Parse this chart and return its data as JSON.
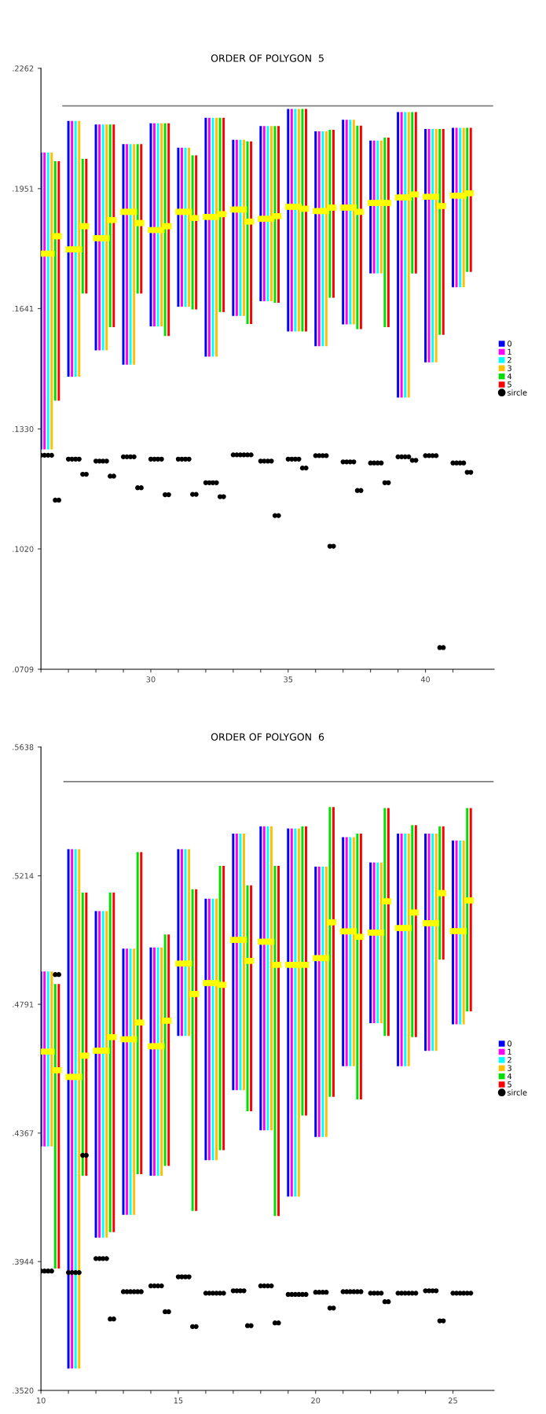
{
  "chart_data": [
    {
      "type": "bar",
      "title": "ORDER OF POLYGON  5",
      "legend": "right",
      "xlim": [
        26,
        42.5
      ],
      "ylim": [
        0.0709,
        0.2262
      ],
      "xticks": [
        {
          "value": 26,
          "label": null
        },
        {
          "value": 27,
          "label": null
        },
        {
          "value": 28,
          "label": null
        },
        {
          "value": 29,
          "label": null
        },
        30,
        {
          "value": 31,
          "label": null
        },
        {
          "value": 32,
          "label": null
        },
        {
          "value": 33,
          "label": null
        },
        {
          "value": 34,
          "label": null
        },
        35,
        {
          "value": 36,
          "label": null
        },
        {
          "value": 37,
          "label": null
        },
        {
          "value": 38,
          "label": null
        },
        {
          "value": 39,
          "label": null
        },
        40,
        {
          "value": 41,
          "label": null
        }
      ],
      "yticks": [
        {
          "value": 0.0709,
          "label": ".0709"
        },
        {
          "value": 0.102,
          "label": ".1020"
        },
        {
          "value": 0.133,
          "label": ".1330"
        },
        {
          "value": 0.1641,
          "label": ".1641"
        },
        {
          "value": 0.1951,
          "label": ".1951"
        },
        {
          "value": 0.2262,
          "label": ".2262"
        }
      ],
      "series": [
        {
          "name": "0",
          "color": "#0000ff",
          "x": [
            26,
            27,
            28,
            29,
            30,
            31,
            32,
            33,
            34,
            35,
            36,
            37,
            38,
            39,
            40,
            41
          ],
          "base": [
            0.1277,
            0.1465,
            0.1533,
            0.1496,
            0.1595,
            0.1646,
            0.1517,
            0.1622,
            0.166,
            0.1582,
            0.1544,
            0.16,
            0.1732,
            0.1411,
            0.1502,
            0.1696
          ],
          "values": [
            0.0767,
            0.0661,
            0.0584,
            0.057,
            0.0525,
            0.0411,
            0.0617,
            0.0455,
            0.0453,
            0.0575,
            0.0555,
            0.0529,
            0.0343,
            0.0738,
            0.0603,
            0.0412
          ]
        },
        {
          "name": "1",
          "color": "#ff00ff",
          "x": [
            26.13,
            27.13,
            28.13,
            29.13,
            30.13,
            31.13,
            32.13,
            33.13,
            34.13,
            35.13,
            36.13,
            37.13,
            38.13,
            39.13,
            40.13,
            41.13
          ],
          "base": [
            0.1277,
            0.1465,
            0.1533,
            0.1496,
            0.1595,
            0.1646,
            0.1517,
            0.1622,
            0.166,
            0.1582,
            0.1544,
            0.16,
            0.1732,
            0.1411,
            0.1502,
            0.1696
          ],
          "values": [
            0.0767,
            0.0661,
            0.0584,
            0.057,
            0.0525,
            0.0411,
            0.0617,
            0.0455,
            0.0453,
            0.0575,
            0.0555,
            0.0529,
            0.0343,
            0.0738,
            0.0603,
            0.0412
          ]
        },
        {
          "name": "2",
          "color": "#00ffff",
          "x": [
            26.26,
            27.26,
            28.26,
            29.26,
            30.26,
            31.26,
            32.26,
            33.26,
            34.26,
            35.26,
            36.26,
            37.26,
            38.26,
            39.26,
            40.26,
            41.26
          ],
          "base": [
            0.1277,
            0.1465,
            0.1533,
            0.1496,
            0.1595,
            0.1646,
            0.1517,
            0.1622,
            0.166,
            0.1582,
            0.1544,
            0.16,
            0.1732,
            0.1411,
            0.1502,
            0.1696
          ],
          "values": [
            0.0767,
            0.0661,
            0.0584,
            0.057,
            0.0525,
            0.0411,
            0.0617,
            0.0455,
            0.0453,
            0.0575,
            0.0555,
            0.0529,
            0.0343,
            0.0738,
            0.0603,
            0.0412
          ]
        },
        {
          "name": "3",
          "color": "#ffc000",
          "x": [
            26.39,
            27.39,
            28.39,
            29.39,
            30.39,
            31.39,
            32.39,
            33.39,
            34.39,
            35.39,
            36.39,
            37.39,
            38.39,
            39.39,
            40.39,
            41.39
          ],
          "base": [
            0.1277,
            0.1465,
            0.1533,
            0.1496,
            0.1595,
            0.1646,
            0.1517,
            0.1622,
            0.166,
            0.1582,
            0.1544,
            0.16,
            0.1732,
            0.1411,
            0.1502,
            0.1696
          ],
          "values": [
            0.0767,
            0.0661,
            0.0584,
            0.057,
            0.0525,
            0.0411,
            0.0617,
            0.0455,
            0.0453,
            0.0575,
            0.0555,
            0.0529,
            0.0343,
            0.0738,
            0.0603,
            0.0412
          ]
        },
        {
          "name": "4",
          "color": "#00e000",
          "x": [
            26.52,
            27.52,
            28.52,
            29.52,
            30.52,
            31.52,
            32.52,
            33.52,
            34.52,
            35.52,
            36.52,
            37.52,
            38.52,
            39.52,
            40.52,
            41.52
          ],
          "base": [
            0.1403,
            0.168,
            0.1593,
            0.168,
            0.157,
            0.1639,
            0.1632,
            0.1601,
            0.1656,
            0.1582,
            0.1669,
            0.1588,
            0.1593,
            0.1732,
            0.1573,
            0.1736
          ],
          "values": [
            0.0619,
            0.0348,
            0.0524,
            0.0386,
            0.055,
            0.0398,
            0.0502,
            0.0472,
            0.0457,
            0.0575,
            0.0434,
            0.0526,
            0.049,
            0.0417,
            0.0532,
            0.0372
          ]
        },
        {
          "name": "5",
          "color": "#ff0000",
          "x": [
            26.65,
            27.65,
            28.65,
            29.65,
            30.65,
            31.65,
            32.65,
            33.65,
            34.65,
            35.65,
            36.65,
            37.65,
            38.65,
            39.65,
            40.65,
            41.65
          ],
          "base": [
            0.1403,
            0.168,
            0.1593,
            0.168,
            0.157,
            0.1639,
            0.1632,
            0.1601,
            0.1656,
            0.1582,
            0.1669,
            0.1588,
            0.1593,
            0.1732,
            0.1573,
            0.1736
          ],
          "values": [
            0.0619,
            0.0348,
            0.0524,
            0.0386,
            0.055,
            0.0398,
            0.0502,
            0.0472,
            0.0457,
            0.0575,
            0.0434,
            0.0526,
            0.049,
            0.0417,
            0.0532,
            0.0372
          ]
        },
        {
          "type": "scatter",
          "marker": "square",
          "color": "#ffff00",
          "x": [
            26,
            26.13,
            26.26,
            26.39,
            26.52,
            26.65,
            27,
            27.13,
            27.26,
            27.39,
            27.52,
            27.65,
            28,
            28.13,
            28.26,
            28.39,
            28.52,
            28.65,
            29,
            29.13,
            29.26,
            29.39,
            29.52,
            29.65,
            30,
            30.13,
            30.26,
            30.39,
            30.52,
            30.65,
            31,
            31.13,
            31.26,
            31.39,
            31.52,
            31.65,
            32,
            32.13,
            32.26,
            32.39,
            32.52,
            32.65,
            33,
            33.13,
            33.26,
            33.39,
            33.52,
            33.65,
            34,
            34.13,
            34.26,
            34.39,
            34.52,
            34.65,
            35,
            35.13,
            35.26,
            35.39,
            35.52,
            35.65,
            36,
            36.13,
            36.26,
            36.39,
            36.52,
            36.65,
            37,
            37.13,
            37.26,
            37.39,
            37.52,
            37.65,
            38,
            38.13,
            38.26,
            38.39,
            38.52,
            38.65,
            39,
            39.13,
            39.26,
            39.39,
            39.52,
            39.65,
            40,
            40.13,
            40.26,
            40.39,
            40.52,
            40.65,
            41,
            41.13,
            41.26,
            41.39,
            41.52,
            41.65
          ],
          "values": [
            0.1783,
            0.1783,
            0.1783,
            0.1783,
            0.1828,
            0.1828,
            0.1794,
            0.1794,
            0.1794,
            0.1794,
            0.1854,
            0.1854,
            0.1823,
            0.1823,
            0.1823,
            0.1823,
            0.187,
            0.187,
            0.1891,
            0.1891,
            0.1891,
            0.1891,
            0.1862,
            0.1862,
            0.1844,
            0.1844,
            0.1844,
            0.1844,
            0.1854,
            0.1854,
            0.1891,
            0.1891,
            0.1891,
            0.1891,
            0.1875,
            0.1875,
            0.1878,
            0.1878,
            0.1878,
            0.1878,
            0.1885,
            0.1885,
            0.1897,
            0.1897,
            0.1897,
            0.1897,
            0.1866,
            0.1866,
            0.1873,
            0.1873,
            0.1873,
            0.1873,
            0.188,
            0.188,
            0.1904,
            0.1904,
            0.1904,
            0.1904,
            0.1899,
            0.1899,
            0.1893,
            0.1893,
            0.1893,
            0.1893,
            0.1902,
            0.1902,
            0.1902,
            0.1902,
            0.1902,
            0.1902,
            0.1891,
            0.1891,
            0.1914,
            0.1914,
            0.1914,
            0.1914,
            0.1914,
            0.1914,
            0.1928,
            0.1928,
            0.1928,
            0.1928,
            0.1936,
            0.1936,
            0.193,
            0.193,
            0.193,
            0.193,
            0.1906,
            0.1906,
            0.1933,
            0.1933,
            0.1933,
            0.1933,
            0.1939,
            0.1939
          ]
        },
        {
          "type": "scatter",
          "name": "sircle",
          "marker": "circle",
          "color": "#000000",
          "x": [
            26,
            26.13,
            26.26,
            26.39,
            26.52,
            26.65,
            27,
            27.13,
            27.26,
            27.39,
            27.52,
            27.65,
            28,
            28.13,
            28.26,
            28.39,
            28.52,
            28.65,
            29,
            29.13,
            29.26,
            29.39,
            29.52,
            29.65,
            30,
            30.13,
            30.26,
            30.39,
            30.52,
            30.65,
            31,
            31.13,
            31.26,
            31.39,
            31.52,
            31.65,
            32,
            32.13,
            32.26,
            32.39,
            32.52,
            32.65,
            33,
            33.13,
            33.26,
            33.39,
            33.52,
            33.65,
            34,
            34.13,
            34.26,
            34.39,
            34.52,
            34.65,
            35,
            35.13,
            35.26,
            35.39,
            35.52,
            35.65,
            36,
            36.13,
            36.26,
            36.39,
            36.52,
            36.65,
            37,
            37.13,
            37.26,
            37.39,
            37.52,
            37.65,
            38,
            38.13,
            38.26,
            38.39,
            38.52,
            38.65,
            39,
            39.13,
            39.26,
            39.39,
            39.52,
            39.65,
            40,
            40.13,
            40.26,
            40.39,
            40.52,
            40.65,
            41,
            41.13,
            41.26,
            41.39,
            41.52,
            41.65
          ],
          "values": [
            0.1262,
            0.1262,
            0.1262,
            0.1262,
            0.1146,
            0.1146,
            0.1252,
            0.1252,
            0.1252,
            0.1252,
            0.1213,
            0.1213,
            0.1247,
            0.1247,
            0.1247,
            0.1247,
            0.1208,
            0.1208,
            0.1258,
            0.1258,
            0.1258,
            0.1258,
            0.1178,
            0.1178,
            0.1252,
            0.1252,
            0.1252,
            0.1252,
            0.116,
            0.116,
            0.1252,
            0.1252,
            0.1252,
            0.1252,
            0.1161,
            0.1161,
            0.1191,
            0.1191,
            0.1191,
            0.1191,
            0.1155,
            0.1155,
            0.1263,
            0.1263,
            0.1263,
            0.1263,
            0.1263,
            0.1263,
            0.1247,
            0.1247,
            0.1247,
            0.1247,
            0.1106,
            0.1106,
            0.1252,
            0.1252,
            0.1252,
            0.1252,
            0.1229,
            0.1229,
            0.1261,
            0.1261,
            0.1261,
            0.1261,
            0.1027,
            0.1027,
            0.1245,
            0.1245,
            0.1245,
            0.1245,
            0.1171,
            0.1171,
            0.1242,
            0.1242,
            0.1242,
            0.1242,
            0.1191,
            0.1191,
            0.1258,
            0.1258,
            0.1258,
            0.1258,
            0.1249,
            0.1249,
            0.1261,
            0.1261,
            0.1261,
            0.1261,
            0.0765,
            0.0765,
            0.1242,
            0.1242,
            0.1242,
            0.1242,
            0.1218,
            0.1218
          ]
        },
        {
          "type": "line",
          "line_style": "solid",
          "color": "#808080",
          "x": [
            26.8,
            42.44
          ],
          "values": [
            0.2165,
            0.2165
          ]
        }
      ]
    },
    {
      "type": "bar",
      "title": "ORDER OF POLYGON  6",
      "legend": "right",
      "xlim": [
        10,
        26.5
      ],
      "ylim": [
        0.352,
        0.5638
      ],
      "xticks": [
        10,
        {
          "value": 11,
          "label": null
        },
        {
          "value": 12,
          "label": null
        },
        {
          "value": 13,
          "label": null
        },
        {
          "value": 14,
          "label": null
        },
        15,
        {
          "value": 16,
          "label": null
        },
        {
          "value": 17,
          "label": null
        },
        {
          "value": 18,
          "label": null
        },
        {
          "value": 19,
          "label": null
        },
        20,
        {
          "value": 21,
          "label": null
        },
        {
          "value": 22,
          "label": null
        },
        {
          "value": 23,
          "label": null
        },
        {
          "value": 24,
          "label": null
        },
        25
      ],
      "yticks": [
        {
          "value": 0.352,
          "label": ".3520"
        },
        {
          "value": 0.3944,
          "label": ".3944"
        },
        {
          "value": 0.4367,
          "label": ".4367"
        },
        {
          "value": 0.4791,
          "label": ".4791"
        },
        {
          "value": 0.5214,
          "label": ".5214"
        },
        {
          "value": 0.5638,
          "label": ".5638"
        }
      ],
      "series": [
        {
          "name": "0",
          "color": "#0000ff",
          "x": [
            10,
            11,
            12,
            13,
            14,
            15,
            16,
            17,
            18,
            19,
            20,
            21,
            22,
            23,
            24,
            25
          ],
          "base": [
            0.4323,
            0.3592,
            0.4023,
            0.4098,
            0.4227,
            0.4687,
            0.4278,
            0.4508,
            0.4376,
            0.4158,
            0.4354,
            0.4587,
            0.4729,
            0.4587,
            0.4638,
            0.4725
          ],
          "values": [
            0.0576,
            0.171,
            0.1075,
            0.0876,
            0.0751,
            0.0615,
            0.0861,
            0.0845,
            0.1001,
            0.1212,
            0.089,
            0.0754,
            0.0529,
            0.0766,
            0.0715,
            0.0605
          ]
        },
        {
          "name": "1",
          "color": "#ff00ff",
          "x": [
            10.13,
            11.13,
            12.13,
            13.13,
            14.13,
            15.13,
            16.13,
            17.13,
            18.13,
            19.13,
            20.13,
            21.13,
            22.13,
            23.13,
            24.13,
            25.13
          ],
          "base": [
            0.4323,
            0.3592,
            0.4023,
            0.4098,
            0.4227,
            0.4687,
            0.4278,
            0.4508,
            0.4376,
            0.4158,
            0.4354,
            0.4587,
            0.4729,
            0.4587,
            0.4638,
            0.4725
          ],
          "values": [
            0.0576,
            0.171,
            0.1075,
            0.0876,
            0.0751,
            0.0615,
            0.0861,
            0.0845,
            0.1001,
            0.1212,
            0.089,
            0.0754,
            0.0529,
            0.0766,
            0.0715,
            0.0605
          ]
        },
        {
          "name": "2",
          "color": "#00ffff",
          "x": [
            10.26,
            11.26,
            12.26,
            13.26,
            14.26,
            15.26,
            16.26,
            17.26,
            18.26,
            19.26,
            20.26,
            21.26,
            22.26,
            23.26,
            24.26,
            25.26
          ],
          "base": [
            0.4323,
            0.3592,
            0.4023,
            0.4098,
            0.4227,
            0.4687,
            0.4278,
            0.4508,
            0.4376,
            0.4158,
            0.4354,
            0.4587,
            0.4729,
            0.4587,
            0.4638,
            0.4725
          ],
          "values": [
            0.0576,
            0.171,
            0.1075,
            0.0876,
            0.0751,
            0.0615,
            0.0861,
            0.0845,
            0.1001,
            0.1212,
            0.089,
            0.0754,
            0.0529,
            0.0766,
            0.0715,
            0.0605
          ]
        },
        {
          "name": "3",
          "color": "#ffc000",
          "x": [
            10.39,
            11.39,
            12.39,
            13.39,
            14.39,
            15.39,
            16.39,
            17.39,
            18.39,
            19.39,
            20.39,
            21.39,
            22.39,
            23.39,
            24.39,
            25.39
          ],
          "base": [
            0.4323,
            0.3592,
            0.4023,
            0.4098,
            0.4227,
            0.4687,
            0.4278,
            0.4508,
            0.4376,
            0.4158,
            0.4354,
            0.4587,
            0.4729,
            0.4587,
            0.4638,
            0.4725
          ],
          "values": [
            0.0576,
            0.171,
            0.1075,
            0.0876,
            0.0751,
            0.0615,
            0.0861,
            0.0845,
            0.1001,
            0.1212,
            0.089,
            0.0754,
            0.0529,
            0.0766,
            0.0715,
            0.0605
          ]
        },
        {
          "name": "4",
          "color": "#00e000",
          "x": [
            10.52,
            11.52,
            12.52,
            13.52,
            14.52,
            15.52,
            16.52,
            17.52,
            18.52,
            19.52,
            20.52,
            21.52,
            22.52,
            23.52,
            24.52,
            25.52
          ],
          "base": [
            0.3921,
            0.4227,
            0.4041,
            0.4232,
            0.4259,
            0.4111,
            0.4311,
            0.4439,
            0.4094,
            0.4425,
            0.4486,
            0.4478,
            0.4687,
            0.4683,
            0.4938,
            0.4768
          ],
          "values": [
            0.0937,
            0.0932,
            0.1118,
            0.106,
            0.0762,
            0.1059,
            0.0936,
            0.0744,
            0.1153,
            0.0952,
            0.0954,
            0.0875,
            0.075,
            0.0698,
            0.0439,
            0.0669
          ]
        },
        {
          "name": "5",
          "color": "#ff0000",
          "x": [
            10.65,
            11.65,
            12.65,
            13.65,
            14.65,
            15.65,
            16.65,
            17.65,
            18.65,
            19.65,
            20.65,
            21.65,
            22.65,
            23.65,
            24.65,
            25.65
          ],
          "base": [
            0.3921,
            0.4227,
            0.4041,
            0.4232,
            0.4259,
            0.4111,
            0.4311,
            0.4439,
            0.4094,
            0.4425,
            0.4486,
            0.4478,
            0.4687,
            0.4683,
            0.4938,
            0.4768
          ],
          "values": [
            0.0937,
            0.0932,
            0.1118,
            0.106,
            0.0762,
            0.1059,
            0.0936,
            0.0744,
            0.1153,
            0.0952,
            0.0954,
            0.0875,
            0.075,
            0.0698,
            0.0439,
            0.0669
          ]
        },
        {
          "type": "scatter",
          "marker": "square",
          "color": "#ffff00",
          "x": [
            10,
            10.13,
            10.26,
            10.39,
            10.52,
            10.65,
            11,
            11.13,
            11.26,
            11.39,
            11.52,
            11.65,
            12,
            12.13,
            12.26,
            12.39,
            12.52,
            12.65,
            13,
            13.13,
            13.26,
            13.39,
            13.52,
            13.65,
            14,
            14.13,
            14.26,
            14.39,
            14.52,
            14.65,
            15,
            15.13,
            15.26,
            15.39,
            15.52,
            15.65,
            16,
            16.13,
            16.26,
            16.39,
            16.52,
            16.65,
            17,
            17.13,
            17.26,
            17.39,
            17.52,
            17.65,
            18,
            18.13,
            18.26,
            18.39,
            18.52,
            18.65,
            19,
            19.13,
            19.26,
            19.39,
            19.52,
            19.65,
            20,
            20.13,
            20.26,
            20.39,
            20.52,
            20.65,
            21,
            21.13,
            21.26,
            21.39,
            21.52,
            21.65,
            22,
            22.13,
            22.26,
            22.39,
            22.52,
            22.65,
            23,
            23.13,
            23.26,
            23.39,
            23.52,
            23.65,
            24,
            24.13,
            24.26,
            24.39,
            24.52,
            24.65,
            25,
            25.13,
            25.26,
            25.39,
            25.52,
            25.65
          ],
          "values": [
            0.4635,
            0.4635,
            0.4635,
            0.4635,
            0.4574,
            0.4574,
            0.4552,
            0.4552,
            0.4552,
            0.4552,
            0.4622,
            0.4622,
            0.4638,
            0.4638,
            0.4638,
            0.4638,
            0.4683,
            0.4683,
            0.4676,
            0.4676,
            0.4676,
            0.4676,
            0.4731,
            0.4731,
            0.4653,
            0.4653,
            0.4653,
            0.4653,
            0.4737,
            0.4737,
            0.4925,
            0.4925,
            0.4925,
            0.4925,
            0.4825,
            0.4825,
            0.4861,
            0.4861,
            0.4861,
            0.4861,
            0.4855,
            0.4855,
            0.5003,
            0.5003,
            0.5003,
            0.5003,
            0.4934,
            0.4934,
            0.4997,
            0.4997,
            0.4997,
            0.4997,
            0.4921,
            0.4921,
            0.4921,
            0.4921,
            0.4921,
            0.4921,
            0.4921,
            0.4921,
            0.4943,
            0.4943,
            0.4943,
            0.4943,
            0.5061,
            0.5061,
            0.5031,
            0.5031,
            0.5031,
            0.5031,
            0.5013,
            0.5013,
            0.5027,
            0.5027,
            0.5027,
            0.5027,
            0.513,
            0.513,
            0.5042,
            0.5042,
            0.5042,
            0.5042,
            0.5093,
            0.5093,
            0.5058,
            0.5058,
            0.5058,
            0.5058,
            0.5157,
            0.5157,
            0.5032,
            0.5032,
            0.5032,
            0.5032,
            0.5133,
            0.5133
          ]
        },
        {
          "type": "scatter",
          "name": "sircle",
          "marker": "circle",
          "color": "#000000",
          "x": [
            10,
            10.13,
            10.26,
            10.39,
            10.52,
            10.65,
            11,
            11.13,
            11.26,
            11.39,
            11.52,
            11.65,
            12,
            12.13,
            12.26,
            12.39,
            12.52,
            12.65,
            13,
            13.13,
            13.26,
            13.39,
            13.52,
            13.65,
            14,
            14.13,
            14.26,
            14.39,
            14.52,
            14.65,
            15,
            15.13,
            15.26,
            15.39,
            15.52,
            15.65,
            16,
            16.13,
            16.26,
            16.39,
            16.52,
            16.65,
            17,
            17.13,
            17.26,
            17.39,
            17.52,
            17.65,
            18,
            18.13,
            18.26,
            18.39,
            18.52,
            18.65,
            19,
            19.13,
            19.26,
            19.39,
            19.52,
            19.65,
            20,
            20.13,
            20.26,
            20.39,
            20.52,
            20.65,
            21,
            21.13,
            21.26,
            21.39,
            21.52,
            21.65,
            22,
            22.13,
            22.26,
            22.39,
            22.52,
            22.65,
            23,
            23.13,
            23.26,
            23.39,
            23.52,
            23.65,
            24,
            24.13,
            24.26,
            24.39,
            24.52,
            24.65,
            25,
            25.13,
            25.26,
            25.39,
            25.52,
            25.65
          ],
          "values": [
            0.3913,
            0.3913,
            0.3913,
            0.3913,
            0.4889,
            0.4889,
            0.3908,
            0.3908,
            0.3908,
            0.3908,
            0.4294,
            0.4294,
            0.3954,
            0.3954,
            0.3954,
            0.3954,
            0.3755,
            0.3755,
            0.3845,
            0.3845,
            0.3845,
            0.3845,
            0.3845,
            0.3845,
            0.3864,
            0.3864,
            0.3864,
            0.3864,
            0.3779,
            0.3779,
            0.3894,
            0.3894,
            0.3894,
            0.3894,
            0.373,
            0.373,
            0.384,
            0.384,
            0.384,
            0.384,
            0.384,
            0.384,
            0.3848,
            0.3848,
            0.3848,
            0.3848,
            0.3733,
            0.3733,
            0.3864,
            0.3864,
            0.3864,
            0.3864,
            0.3742,
            0.3742,
            0.3836,
            0.3836,
            0.3836,
            0.3836,
            0.3836,
            0.3836,
            0.3843,
            0.3843,
            0.3843,
            0.3843,
            0.3791,
            0.3791,
            0.3845,
            0.3845,
            0.3845,
            0.3845,
            0.3845,
            0.3845,
            0.384,
            0.384,
            0.384,
            0.384,
            0.3812,
            0.3812,
            0.384,
            0.384,
            0.384,
            0.384,
            0.384,
            0.384,
            0.3848,
            0.3848,
            0.3848,
            0.3848,
            0.3749,
            0.3749,
            0.384,
            0.384,
            0.384,
            0.384,
            0.384,
            0.384
          ]
        },
        {
          "type": "line",
          "line_style": "solid",
          "color": "#808080",
          "x": [
            10.84,
            26.46
          ],
          "values": [
            0.5524,
            0.5524
          ]
        }
      ]
    }
  ]
}
